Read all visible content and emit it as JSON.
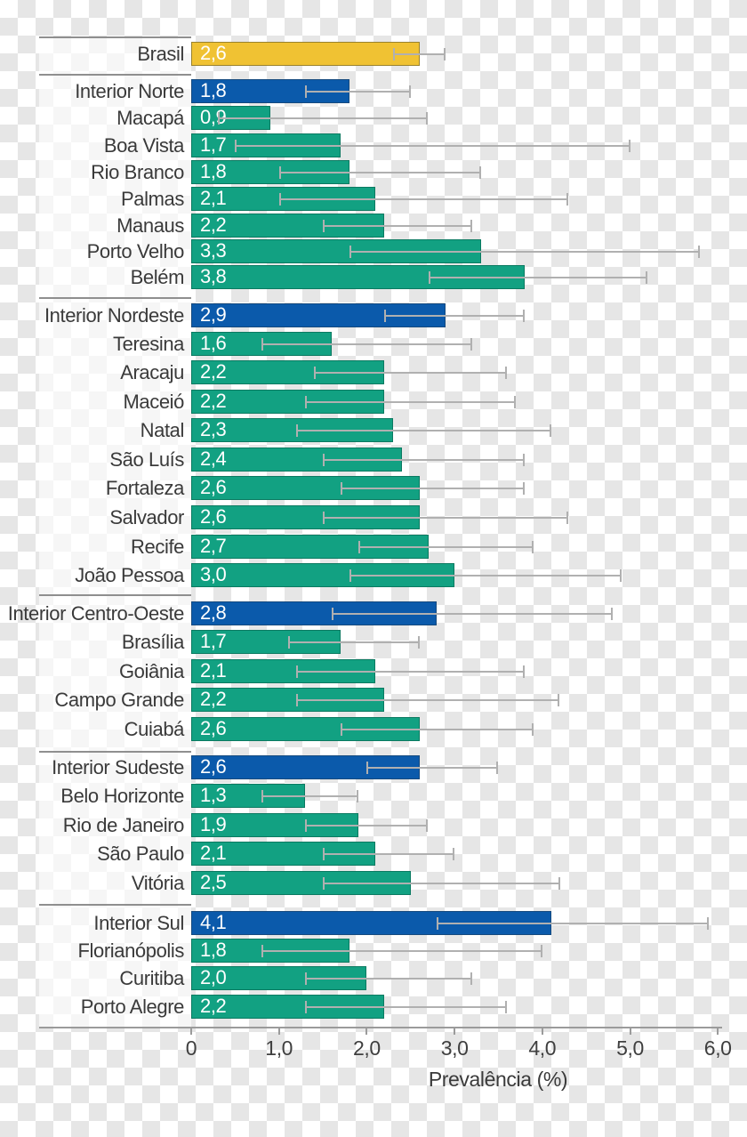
{
  "chart_data": {
    "type": "bar",
    "orientation": "horizontal",
    "title": "",
    "xlabel": "Prevalência (%)",
    "ylabel": "",
    "xlim": [
      0,
      6
    ],
    "grid": false,
    "legend": "none",
    "error_bars": true,
    "xticks": [
      {
        "label": "0",
        "value": 0
      },
      {
        "label": "1,0",
        "value": 1
      },
      {
        "label": "2,0",
        "value": 2
      },
      {
        "label": "3,0",
        "value": 3
      },
      {
        "label": "4,0",
        "value": 4
      },
      {
        "label": "5,0",
        "value": 5
      },
      {
        "label": "6,0",
        "value": 6
      }
    ],
    "colors": {
      "national_fill": "#f0c233",
      "national_border": "#99822e",
      "region_fill": "#0b5aab",
      "region_border": "#164a7e",
      "city_fill": "#12a182",
      "city_border": "#0b7a61",
      "error_bar": "#b0b0b0",
      "label_text": "#3a3a3a",
      "value_text": "#ffffff",
      "checker_dark": "#e6e6e6",
      "checker_light": "#ffffff",
      "axis": "#9b9b9b",
      "separator": "#8f8f8f"
    },
    "groups": [
      {
        "rows": [
          {
            "label": "Brasil",
            "value": 2.6,
            "display": "2,6",
            "ci_low": 2.3,
            "ci_high": 2.9,
            "kind": "national"
          }
        ]
      },
      {
        "rows": [
          {
            "label": "Interior Norte",
            "value": 1.8,
            "display": "1,8",
            "ci_low": 1.3,
            "ci_high": 2.5,
            "kind": "region"
          },
          {
            "label": "Macapá",
            "value": 0.9,
            "display": "0,9",
            "ci_low": 0.3,
            "ci_high": 2.7,
            "kind": "city"
          },
          {
            "label": "Boa Vista",
            "value": 1.7,
            "display": "1,7",
            "ci_low": 0.5,
            "ci_high": 5.0,
            "kind": "city"
          },
          {
            "label": "Rio Branco",
            "value": 1.8,
            "display": "1,8",
            "ci_low": 1.0,
            "ci_high": 3.3,
            "kind": "city"
          },
          {
            "label": "Palmas",
            "value": 2.1,
            "display": "2,1",
            "ci_low": 1.0,
            "ci_high": 4.3,
            "kind": "city"
          },
          {
            "label": "Manaus",
            "value": 2.2,
            "display": "2,2",
            "ci_low": 1.5,
            "ci_high": 3.2,
            "kind": "city"
          },
          {
            "label": "Porto Velho",
            "value": 3.3,
            "display": "3,3",
            "ci_low": 1.8,
            "ci_high": 5.8,
            "kind": "city"
          },
          {
            "label": "Belém",
            "value": 3.8,
            "display": "3,8",
            "ci_low": 2.7,
            "ci_high": 5.2,
            "kind": "city"
          }
        ]
      },
      {
        "rows": [
          {
            "label": "Interior Nordeste",
            "value": 2.9,
            "display": "2,9",
            "ci_low": 2.2,
            "ci_high": 3.8,
            "kind": "region"
          },
          {
            "label": "Teresina",
            "value": 1.6,
            "display": "1,6",
            "ci_low": 0.8,
            "ci_high": 3.2,
            "kind": "city"
          },
          {
            "label": "Aracaju",
            "value": 2.2,
            "display": "2,2",
            "ci_low": 1.4,
            "ci_high": 3.6,
            "kind": "city"
          },
          {
            "label": "Maceió",
            "value": 2.2,
            "display": "2,2",
            "ci_low": 1.3,
            "ci_high": 3.7,
            "kind": "city"
          },
          {
            "label": "Natal",
            "value": 2.3,
            "display": "2,3",
            "ci_low": 1.2,
            "ci_high": 4.1,
            "kind": "city"
          },
          {
            "label": "São Luís",
            "value": 2.4,
            "display": "2,4",
            "ci_low": 1.5,
            "ci_high": 3.8,
            "kind": "city"
          },
          {
            "label": "Fortaleza",
            "value": 2.6,
            "display": "2,6",
            "ci_low": 1.7,
            "ci_high": 3.8,
            "kind": "city"
          },
          {
            "label": "Salvador",
            "value": 2.6,
            "display": "2,6",
            "ci_low": 1.5,
            "ci_high": 4.3,
            "kind": "city"
          },
          {
            "label": "Recife",
            "value": 2.7,
            "display": "2,7",
            "ci_low": 1.9,
            "ci_high": 3.9,
            "kind": "city"
          },
          {
            "label": "João Pessoa",
            "value": 3.0,
            "display": "3,0",
            "ci_low": 1.8,
            "ci_high": 4.9,
            "kind": "city"
          }
        ]
      },
      {
        "rows": [
          {
            "label": "Interior Centro-Oeste",
            "value": 2.8,
            "display": "2,8",
            "ci_low": 1.6,
            "ci_high": 4.8,
            "kind": "region"
          },
          {
            "label": "Brasília",
            "value": 1.7,
            "display": "1,7",
            "ci_low": 1.1,
            "ci_high": 2.6,
            "kind": "city"
          },
          {
            "label": "Goiânia",
            "value": 2.1,
            "display": "2,1",
            "ci_low": 1.2,
            "ci_high": 3.8,
            "kind": "city"
          },
          {
            "label": "Campo Grande",
            "value": 2.2,
            "display": "2,2",
            "ci_low": 1.2,
            "ci_high": 4.2,
            "kind": "city"
          },
          {
            "label": "Cuiabá",
            "value": 2.6,
            "display": "2,6",
            "ci_low": 1.7,
            "ci_high": 3.9,
            "kind": "city"
          }
        ]
      },
      {
        "rows": [
          {
            "label": "Interior Sudeste",
            "value": 2.6,
            "display": "2,6",
            "ci_low": 2.0,
            "ci_high": 3.5,
            "kind": "region"
          },
          {
            "label": "Belo Horizonte",
            "value": 1.3,
            "display": "1,3",
            "ci_low": 0.8,
            "ci_high": 1.9,
            "kind": "city"
          },
          {
            "label": "Rio de Janeiro",
            "value": 1.9,
            "display": "1,9",
            "ci_low": 1.3,
            "ci_high": 2.7,
            "kind": "city"
          },
          {
            "label": "São Paulo",
            "value": 2.1,
            "display": "2,1",
            "ci_low": 1.5,
            "ci_high": 3.0,
            "kind": "city"
          },
          {
            "label": "Vitória",
            "value": 2.5,
            "display": "2,5",
            "ci_low": 1.5,
            "ci_high": 4.2,
            "kind": "city"
          }
        ]
      },
      {
        "rows": [
          {
            "label": "Interior Sul",
            "value": 4.1,
            "display": "4,1",
            "ci_low": 2.8,
            "ci_high": 5.9,
            "kind": "region"
          },
          {
            "label": "Florianópolis",
            "value": 1.8,
            "display": "1,8",
            "ci_low": 0.8,
            "ci_high": 4.0,
            "kind": "city"
          },
          {
            "label": "Curitiba",
            "value": 2.0,
            "display": "2,0",
            "ci_low": 1.3,
            "ci_high": 3.2,
            "kind": "city"
          },
          {
            "label": "Porto Alegre",
            "value": 2.2,
            "display": "2,2",
            "ci_low": 1.3,
            "ci_high": 3.6,
            "kind": "city"
          }
        ]
      }
    ]
  }
}
